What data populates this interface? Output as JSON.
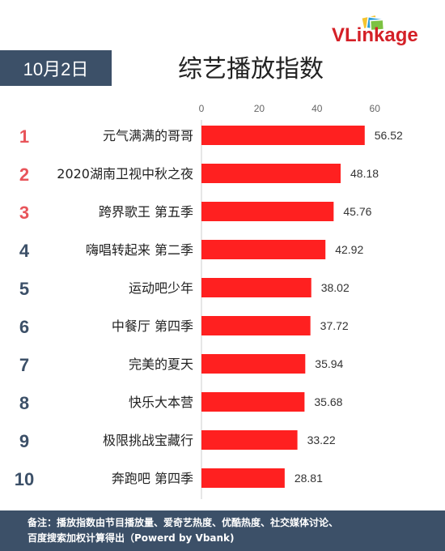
{
  "logo": {
    "text": "VLinkage"
  },
  "date_label": "10月2日",
  "title": "综艺播放指数",
  "chart_data": {
    "type": "bar",
    "orientation": "horizontal",
    "title": "综艺播放指数",
    "ranks": [
      "1",
      "2",
      "3",
      "4",
      "5",
      "6",
      "7",
      "8",
      "9",
      "10"
    ],
    "categories": [
      "元气满满的哥哥",
      "2020湖南卫视中秋之夜",
      "跨界歌王 第五季",
      "嗨唱转起来 第二季",
      "运动吧少年",
      "中餐厅 第四季",
      "完美的夏天",
      "快乐大本营",
      "极限挑战宝藏行",
      "奔跑吧 第四季"
    ],
    "values": [
      56.52,
      48.18,
      45.76,
      42.92,
      38.02,
      37.72,
      35.94,
      35.68,
      33.22,
      28.81
    ],
    "value_labels": [
      "56.52",
      "48.18",
      "45.76",
      "42.92",
      "38.02",
      "37.72",
      "35.94",
      "35.68",
      "33.22",
      "28.81"
    ],
    "xticks": [
      "0",
      "20",
      "40",
      "60"
    ],
    "xlim": [
      0,
      60
    ],
    "grid": false,
    "colors": {
      "bar": "#ff2020",
      "rank_top": "#e8545a",
      "rank_other": "#3c5068"
    }
  },
  "footer": {
    "line1": "备注：播放指数由节目播放量、爱奇艺热度、优酷热度、社交媒体讨论、",
    "line2": "百度搜索加权计算得出（Powerd by Vbank)"
  }
}
